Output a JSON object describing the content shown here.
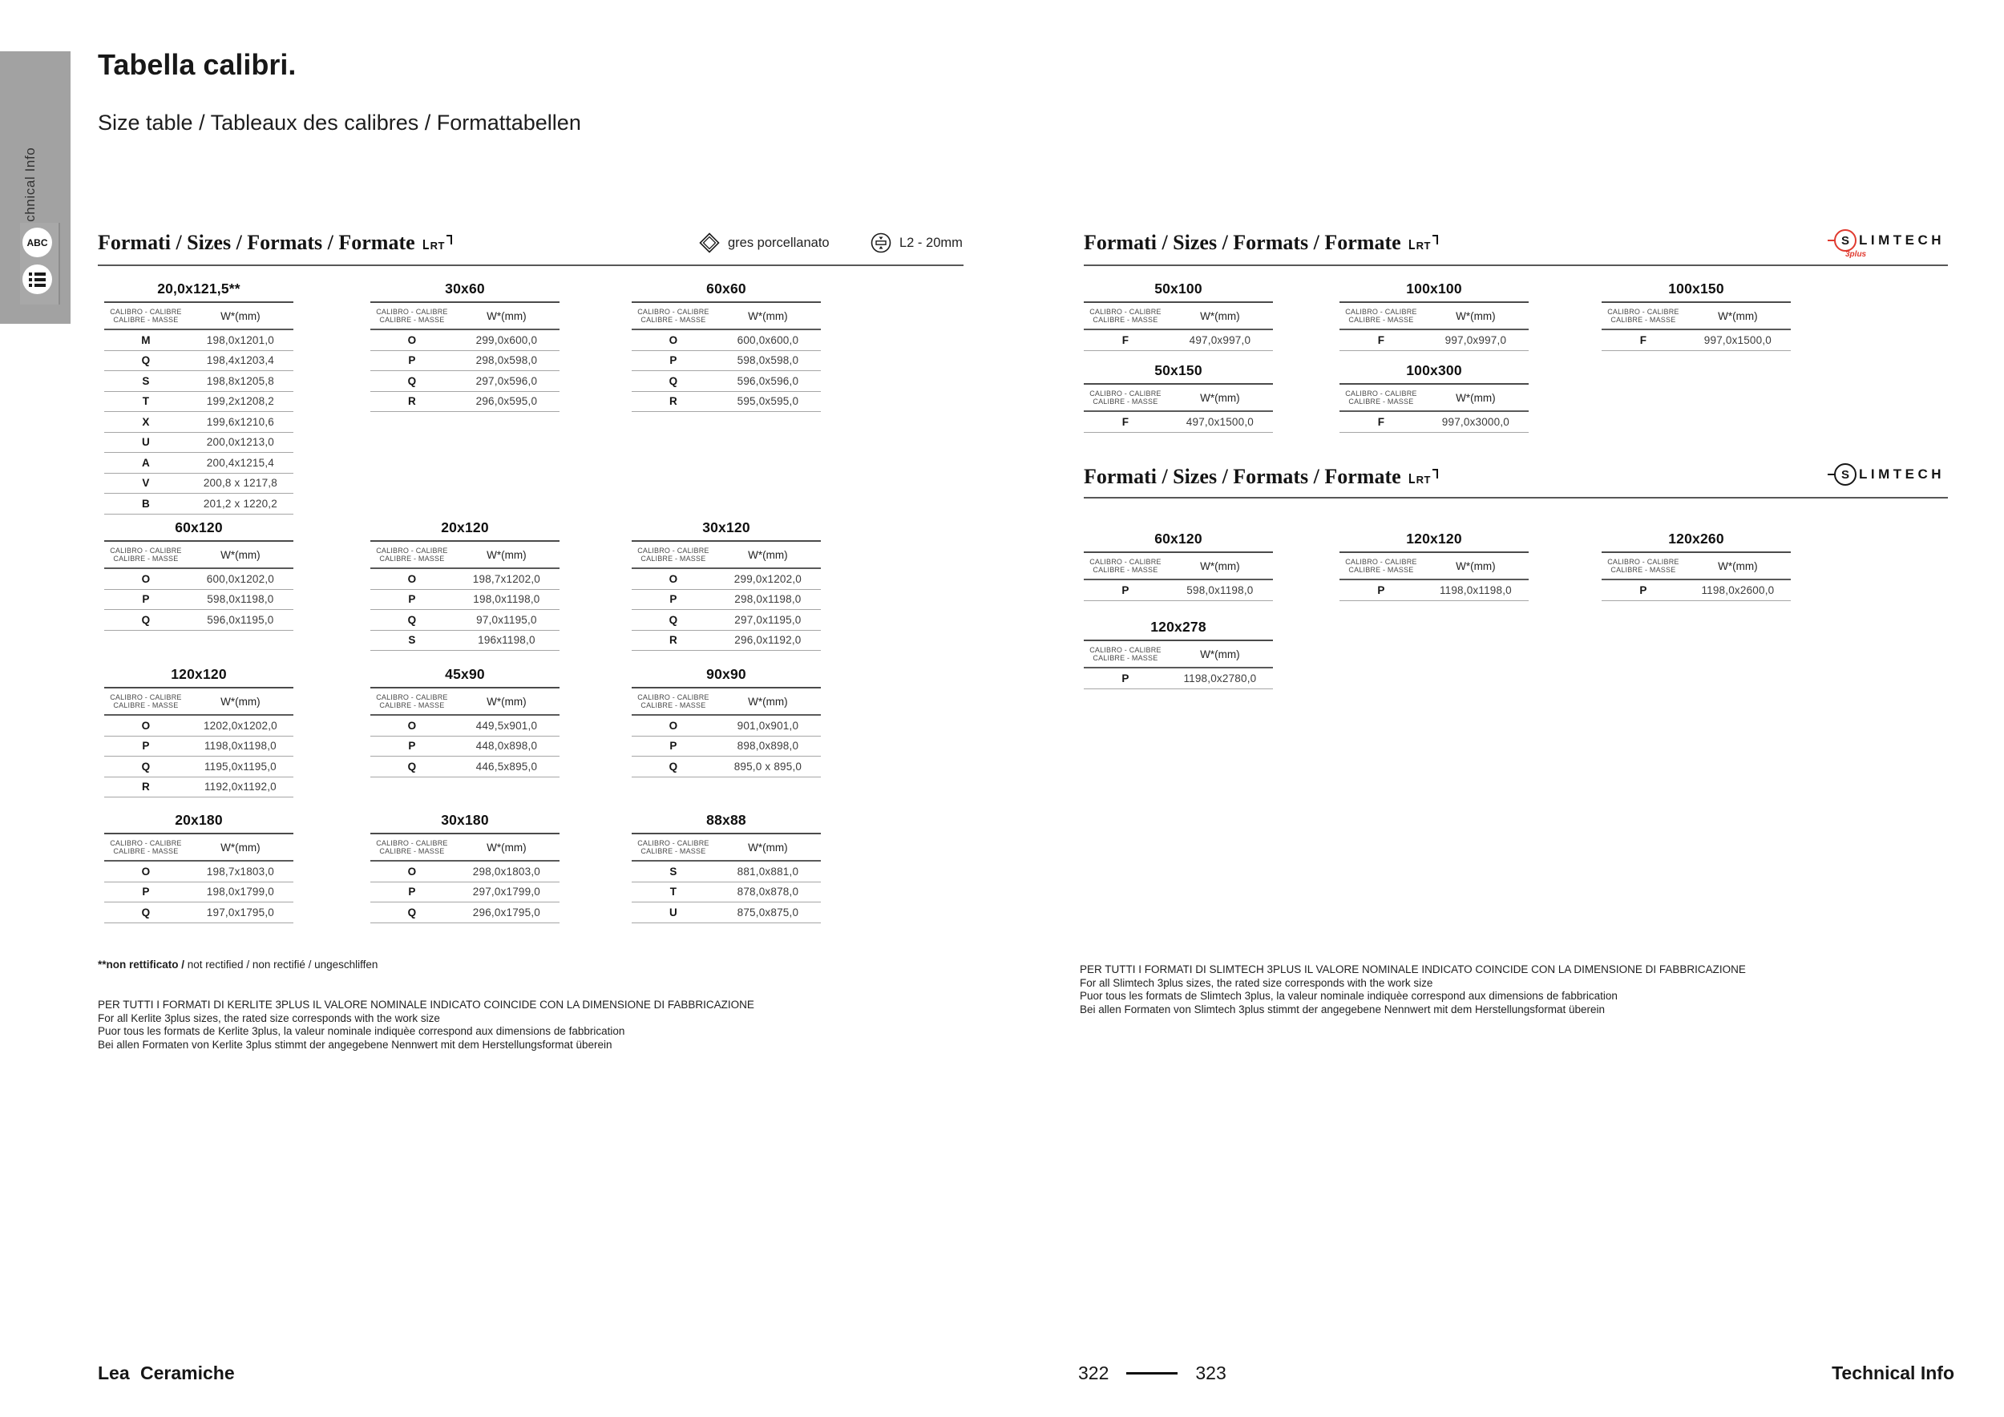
{
  "sidebar": {
    "vertical_label": "Technical Info",
    "abc_label": "ABC"
  },
  "header": {
    "title": "Tabella calibri.",
    "subtitle": "Size table / Tableaux des calibres / Formattabellen"
  },
  "headings": {
    "formati": "Formati / Sizes / Formats / Formate",
    "rt": "RT"
  },
  "badges": {
    "gres": "gres porcellanato",
    "l2": "L2 - 20mm"
  },
  "slimtech": {
    "s": "S",
    "rest": "LIMTECH",
    "sub": "3plus"
  },
  "table_header": {
    "left1": "CALIBRO - CALIBRE",
    "left2": "CALIBRE - MASSE",
    "right": "W*(mm)"
  },
  "left_tables": [
    {
      "title": "20,0x121,5**",
      "rows": [
        [
          "M",
          "198,0x1201,0"
        ],
        [
          "Q",
          "198,4x1203,4"
        ],
        [
          "S",
          "198,8x1205,8"
        ],
        [
          "T",
          "199,2x1208,2"
        ],
        [
          "X",
          "199,6x1210,6"
        ],
        [
          "U",
          "200,0x1213,0"
        ],
        [
          "A",
          "200,4x1215,4"
        ],
        [
          "V",
          "200,8 x 1217,8"
        ],
        [
          "B",
          "201,2 x 1220,2"
        ]
      ]
    },
    {
      "title": "30x60",
      "rows": [
        [
          "O",
          "299,0x600,0"
        ],
        [
          "P",
          "298,0x598,0"
        ],
        [
          "Q",
          "297,0x596,0"
        ],
        [
          "R",
          "296,0x595,0"
        ]
      ]
    },
    {
      "title": "60x60",
      "rows": [
        [
          "O",
          "600,0x600,0"
        ],
        [
          "P",
          "598,0x598,0"
        ],
        [
          "Q",
          "596,0x596,0"
        ],
        [
          "R",
          "595,0x595,0"
        ]
      ]
    },
    {
      "title": "60x120",
      "rows": [
        [
          "O",
          "600,0x1202,0"
        ],
        [
          "P",
          "598,0x1198,0"
        ],
        [
          "Q",
          "596,0x1195,0"
        ]
      ]
    },
    {
      "title": "20x120",
      "rows": [
        [
          "O",
          "198,7x1202,0"
        ],
        [
          "P",
          "198,0x1198,0"
        ],
        [
          "Q",
          "97,0x1195,0"
        ],
        [
          "S",
          "196x1198,0"
        ]
      ]
    },
    {
      "title": "30x120",
      "rows": [
        [
          "O",
          "299,0x1202,0"
        ],
        [
          "P",
          "298,0x1198,0"
        ],
        [
          "Q",
          "297,0x1195,0"
        ],
        [
          "R",
          "296,0x1192,0"
        ]
      ]
    },
    {
      "title": "120x120",
      "rows": [
        [
          "O",
          "1202,0x1202,0"
        ],
        [
          "P",
          "1198,0x1198,0"
        ],
        [
          "Q",
          "1195,0x1195,0"
        ],
        [
          "R",
          "1192,0x1192,0"
        ]
      ]
    },
    {
      "title": "45x90",
      "rows": [
        [
          "O",
          "449,5x901,0"
        ],
        [
          "P",
          "448,0x898,0"
        ],
        [
          "Q",
          "446,5x895,0"
        ]
      ]
    },
    {
      "title": "90x90",
      "rows": [
        [
          "O",
          "901,0x901,0"
        ],
        [
          "P",
          "898,0x898,0"
        ],
        [
          "Q",
          "895,0 x 895,0"
        ]
      ]
    },
    {
      "title": "20x180",
      "rows": [
        [
          "O",
          "198,7x1803,0"
        ],
        [
          "P",
          "198,0x1799,0"
        ],
        [
          "Q",
          "197,0x1795,0"
        ]
      ]
    },
    {
      "title": "30x180",
      "rows": [
        [
          "O",
          "298,0x1803,0"
        ],
        [
          "P",
          "297,0x1799,0"
        ],
        [
          "Q",
          "296,0x1795,0"
        ]
      ]
    },
    {
      "title": "88x88",
      "rows": [
        [
          "S",
          "881,0x881,0"
        ],
        [
          "T",
          "878,0x878,0"
        ],
        [
          "U",
          "875,0x875,0"
        ]
      ]
    }
  ],
  "right_tables_a": [
    {
      "title": "50x100",
      "rows": [
        [
          "F",
          "497,0x997,0"
        ]
      ]
    },
    {
      "title": "100x100",
      "rows": [
        [
          "F",
          "997,0x997,0"
        ]
      ]
    },
    {
      "title": "100x150",
      "rows": [
        [
          "F",
          "997,0x1500,0"
        ]
      ]
    },
    {
      "title": "50x150",
      "rows": [
        [
          "F",
          "497,0x1500,0"
        ]
      ]
    },
    {
      "title": "100x300",
      "rows": [
        [
          "F",
          "997,0x3000,0"
        ]
      ]
    }
  ],
  "right_tables_b": [
    {
      "title": "60x120",
      "rows": [
        [
          "P",
          "598,0x1198,0"
        ]
      ]
    },
    {
      "title": "120x120",
      "rows": [
        [
          "P",
          "1198,0x1198,0"
        ]
      ]
    },
    {
      "title": "120x260",
      "rows": [
        [
          "P",
          "1198,0x2600,0"
        ]
      ]
    },
    {
      "title": "120x278",
      "rows": [
        [
          "P",
          "1198,0x2780,0"
        ]
      ]
    }
  ],
  "footnotes": {
    "left_star_bold": "**non rettificato /",
    "left_star_rest": "not rectified / non rectifié / ungeschliffen",
    "left_lines": [
      "PER TUTTI I FORMATI DI KERLITE 3PLUS IL VALORE NOMINALE INDICATO COINCIDE CON LA DIMENSIONE DI FABBRICAZIONE",
      "For all Kerlite 3plus sizes, the rated size corresponds with the work size",
      "Puor tous les formats de Kerlite 3plus, la valeur nominale indiquèe correspond aux dimensions de fabbrication",
      "Bei allen Formaten von Kerlite 3plus stimmt der angegebene Nennwert mit dem Herstellungsformat überein"
    ],
    "right_lines": [
      "PER TUTTI I FORMATI DI SLIMTECH 3PLUS IL VALORE NOMINALE INDICATO COINCIDE CON LA DIMENSIONE DI FABBRICAZIONE",
      "For all Slimtech 3plus sizes, the rated size corresponds with the work size",
      "Puor tous les formats de Slimtech 3plus, la valeur nominale indiquèe correspond aux dimensions de fabbrication",
      "Bei allen Formaten von Slimtech 3plus stimmt der angegebene Nennwert mit dem Herstellungsformat überein"
    ]
  },
  "footer": {
    "brand": "Lea Ceramiche",
    "page_left": "322",
    "page_right": "323",
    "section": "Technical Info"
  }
}
